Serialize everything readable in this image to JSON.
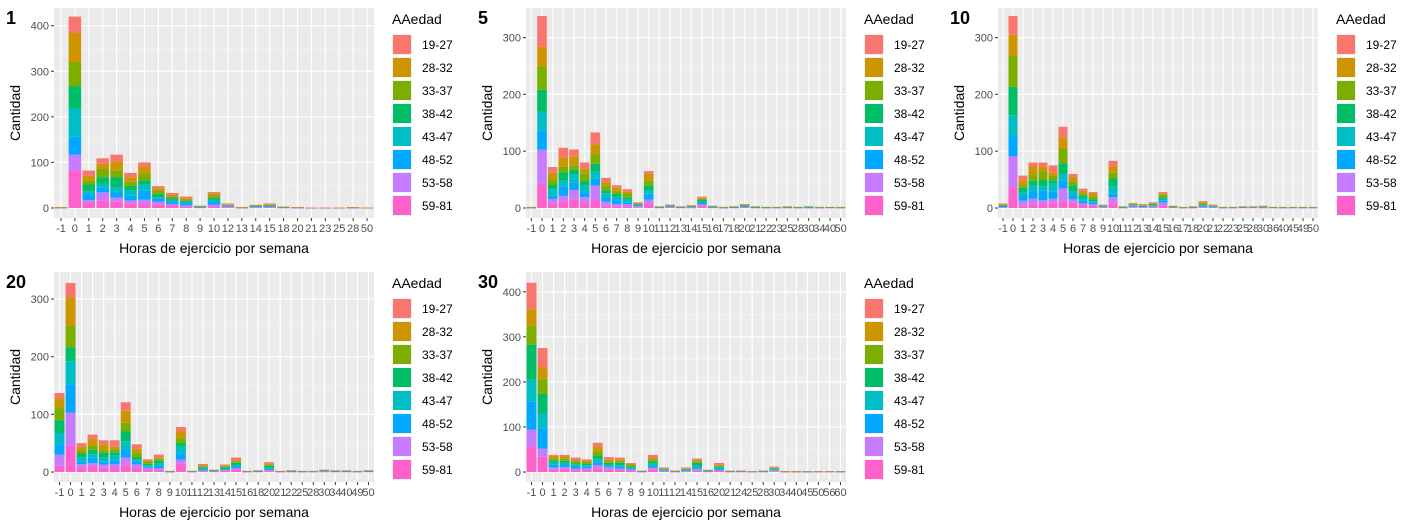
{
  "legend": {
    "title": "AAedad",
    "groups": [
      "19-27",
      "28-32",
      "33-37",
      "38-42",
      "43-47",
      "48-52",
      "53-58",
      "59-81"
    ],
    "colors": [
      "#F8766D",
      "#CD9600",
      "#7CAE00",
      "#00BE67",
      "#00BFC4",
      "#00A9FF",
      "#C77CFF",
      "#FF61CC"
    ]
  },
  "axis_labels": {
    "x": "Horas de ejercicio por semana",
    "y": "Cantidad"
  },
  "chart_data": [
    {
      "type": "bar",
      "stacked": true,
      "tag": "1",
      "xlabel": "Horas de ejercicio por semana",
      "ylabel": "Cantidad",
      "ylim": [
        0,
        430
      ],
      "yticks": [
        0,
        100,
        200,
        300,
        400
      ],
      "categories": [
        "-1",
        "0",
        "1",
        "2",
        "3",
        "4",
        "5",
        "6",
        "7",
        "8",
        "9",
        "10",
        "12",
        "13",
        "14",
        "15",
        "18",
        "20",
        "21",
        "23",
        "25",
        "28",
        "50"
      ],
      "totals": [
        2,
        420,
        82,
        109,
        117,
        77,
        100,
        48,
        33,
        25,
        5,
        35,
        10,
        2,
        7,
        10,
        3,
        2,
        1,
        1,
        1,
        2,
        1
      ],
      "grid": true,
      "legend_position": "right"
    },
    {
      "type": "bar",
      "stacked": true,
      "tag": "5",
      "xlabel": "Horas de ejercicio por semana",
      "ylabel": "Cantidad",
      "ylim": [
        0,
        345
      ],
      "yticks": [
        0,
        100,
        200,
        300
      ],
      "categories": [
        "-1",
        "0",
        "1",
        "2",
        "3",
        "4",
        "5",
        "6",
        "7",
        "8",
        "9",
        "10",
        "11",
        "12",
        "13",
        "14",
        "15",
        "16",
        "17",
        "18",
        "20",
        "21",
        "22",
        "23",
        "25",
        "28",
        "30",
        "34",
        "40",
        "50"
      ],
      "totals": [
        2,
        338,
        72,
        106,
        103,
        80,
        133,
        53,
        40,
        33,
        10,
        65,
        3,
        6,
        3,
        5,
        20,
        4,
        2,
        3,
        7,
        3,
        2,
        2,
        3,
        2,
        3,
        2,
        2,
        2
      ],
      "grid": true,
      "legend_position": "right"
    },
    {
      "type": "bar",
      "stacked": true,
      "tag": "10",
      "xlabel": "Horas de ejercicio por semana",
      "ylabel": "Cantidad",
      "ylim": [
        0,
        345
      ],
      "yticks": [
        0,
        100,
        200,
        300
      ],
      "categories": [
        "-1",
        "0",
        "1",
        "2",
        "3",
        "4",
        "5",
        "6",
        "7",
        "8",
        "9",
        "10",
        "11",
        "12",
        "13",
        "14",
        "15",
        "16",
        "17",
        "18",
        "20",
        "21",
        "22",
        "23",
        "25",
        "28",
        "30",
        "36",
        "40",
        "45",
        "49",
        "50"
      ],
      "totals": [
        8,
        338,
        57,
        80,
        80,
        75,
        143,
        60,
        34,
        28,
        6,
        83,
        3,
        9,
        7,
        10,
        28,
        4,
        2,
        3,
        12,
        6,
        2,
        2,
        3,
        3,
        4,
        2,
        2,
        2,
        2,
        2
      ],
      "grid": true,
      "legend_position": "right"
    },
    {
      "type": "bar",
      "stacked": true,
      "tag": "20",
      "xlabel": "Horas de ejercicio por semana",
      "ylabel": "Cantidad",
      "ylim": [
        0,
        340
      ],
      "yticks": [
        0,
        100,
        200,
        300
      ],
      "categories": [
        "-1",
        "0",
        "1",
        "2",
        "3",
        "4",
        "5",
        "6",
        "7",
        "8",
        "9",
        "10",
        "11",
        "12",
        "13",
        "14",
        "15",
        "16",
        "18",
        "20",
        "21",
        "22",
        "25",
        "28",
        "30",
        "34",
        "40",
        "49",
        "50"
      ],
      "totals": [
        137,
        328,
        50,
        65,
        55,
        55,
        121,
        48,
        22,
        30,
        2,
        78,
        2,
        14,
        4,
        13,
        25,
        2,
        3,
        17,
        2,
        3,
        2,
        2,
        4,
        3,
        3,
        2,
        3
      ],
      "grid": true,
      "legend_position": "right"
    },
    {
      "type": "bar",
      "stacked": true,
      "tag": "30",
      "xlabel": "Horas de ejercicio por semana",
      "ylabel": "Cantidad",
      "ylim": [
        0,
        435
      ],
      "yticks": [
        0,
        100,
        200,
        300,
        400
      ],
      "categories": [
        "-1",
        "0",
        "1",
        "2",
        "3",
        "4",
        "5",
        "6",
        "7",
        "8",
        "9",
        "10",
        "11",
        "12",
        "14",
        "15",
        "16",
        "20",
        "21",
        "24",
        "25",
        "28",
        "30",
        "34",
        "40",
        "45",
        "50",
        "56",
        "60"
      ],
      "totals": [
        420,
        275,
        38,
        38,
        32,
        28,
        65,
        33,
        32,
        20,
        3,
        38,
        10,
        3,
        10,
        30,
        5,
        20,
        3,
        3,
        2,
        3,
        12,
        2,
        2,
        2,
        2,
        2,
        2
      ],
      "grid": true,
      "legend_position": "right"
    }
  ]
}
